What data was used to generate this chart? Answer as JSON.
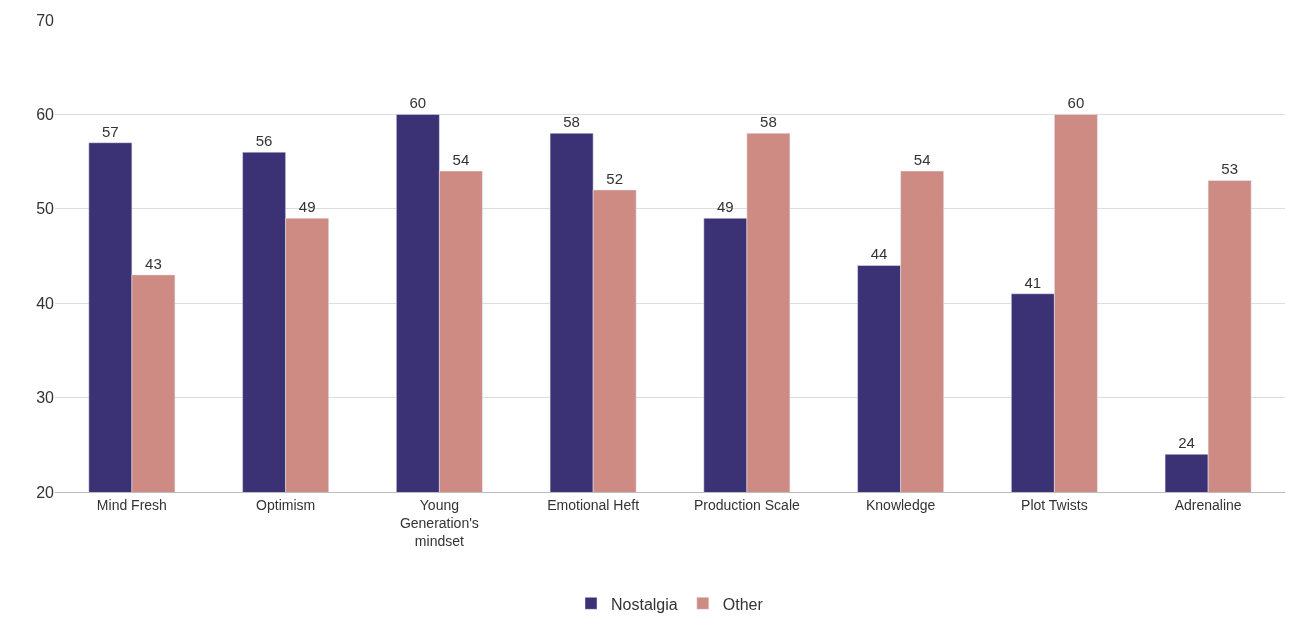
{
  "chart_data": {
    "type": "bar",
    "categories": [
      "Mind Fresh",
      "Optimism",
      "Young Generation's mindset",
      "Emotional Heft",
      "Production Scale",
      "Knowledge",
      "Plot Twists",
      "Adrenaline"
    ],
    "series": [
      {
        "name": "Nostalgia",
        "color": "#3a3274",
        "values": [
          57,
          56,
          60,
          58,
          49,
          44,
          41,
          24
        ]
      },
      {
        "name": "Other",
        "color": "#cd8b84",
        "values": [
          43,
          49,
          54,
          52,
          58,
          54,
          60,
          53
        ]
      }
    ],
    "ylim": [
      20,
      70
    ],
    "yticks": [
      20,
      30,
      40,
      50,
      60,
      70
    ],
    "grid": "y",
    "legend": "bottom",
    "data_labels": true
  }
}
